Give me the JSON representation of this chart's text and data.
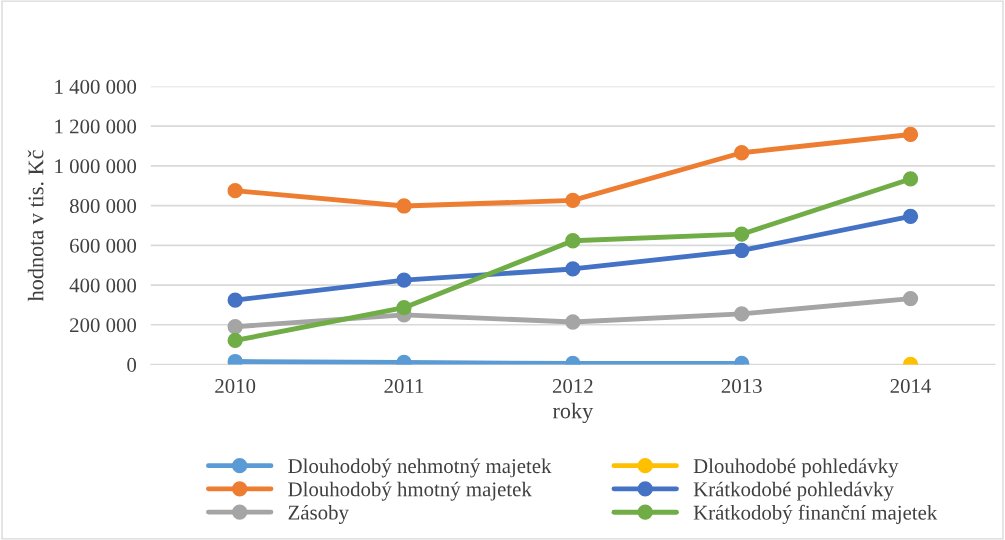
{
  "chart_data": {
    "type": "line",
    "xlabel": "roky",
    "ylabel": "hodnota v tis. Kč",
    "categories": [
      "2010",
      "2011",
      "2012",
      "2013",
      "2014"
    ],
    "series": [
      {
        "name": "Dlouhodobý nehmotný majetek",
        "color": "#5b9bd5",
        "values": [
          15000,
          10000,
          5000,
          5000,
          null
        ]
      },
      {
        "name": "Dlouhodobý hmotný majetek",
        "color": "#ed7d31",
        "values": [
          875000,
          798000,
          826000,
          1066000,
          1158000
        ]
      },
      {
        "name": "Zásoby",
        "color": "#a5a5a5",
        "values": [
          190000,
          250000,
          214000,
          255000,
          332000
        ]
      },
      {
        "name": "Dlouhodobé pohledávky",
        "color": "#ffc000",
        "values": [
          null,
          null,
          null,
          null,
          0
        ]
      },
      {
        "name": "Krátkodobé pohledávky",
        "color": "#4472c4",
        "values": [
          324000,
          425000,
          481000,
          574000,
          746000
        ]
      },
      {
        "name": "Krátkodobý finanční majetek",
        "color": "#70ad47",
        "values": [
          121000,
          286000,
          623000,
          656000,
          934000
        ]
      }
    ],
    "ylim": [
      0,
      1400000
    ],
    "yticks": [
      {
        "value": 0,
        "label": "0"
      },
      {
        "value": 200000,
        "label": "200 000"
      },
      {
        "value": 400000,
        "label": "400 000"
      },
      {
        "value": 600000,
        "label": "600 000"
      },
      {
        "value": 800000,
        "label": "800 000"
      },
      {
        "value": 1000000,
        "label": "1 000 000"
      },
      {
        "value": 1200000,
        "label": "1 200 000"
      },
      {
        "value": 1400000,
        "label": "1 400 000"
      }
    ],
    "grid": "y",
    "legend": "bottom",
    "marker": "circle",
    "line_style": "solid"
  }
}
